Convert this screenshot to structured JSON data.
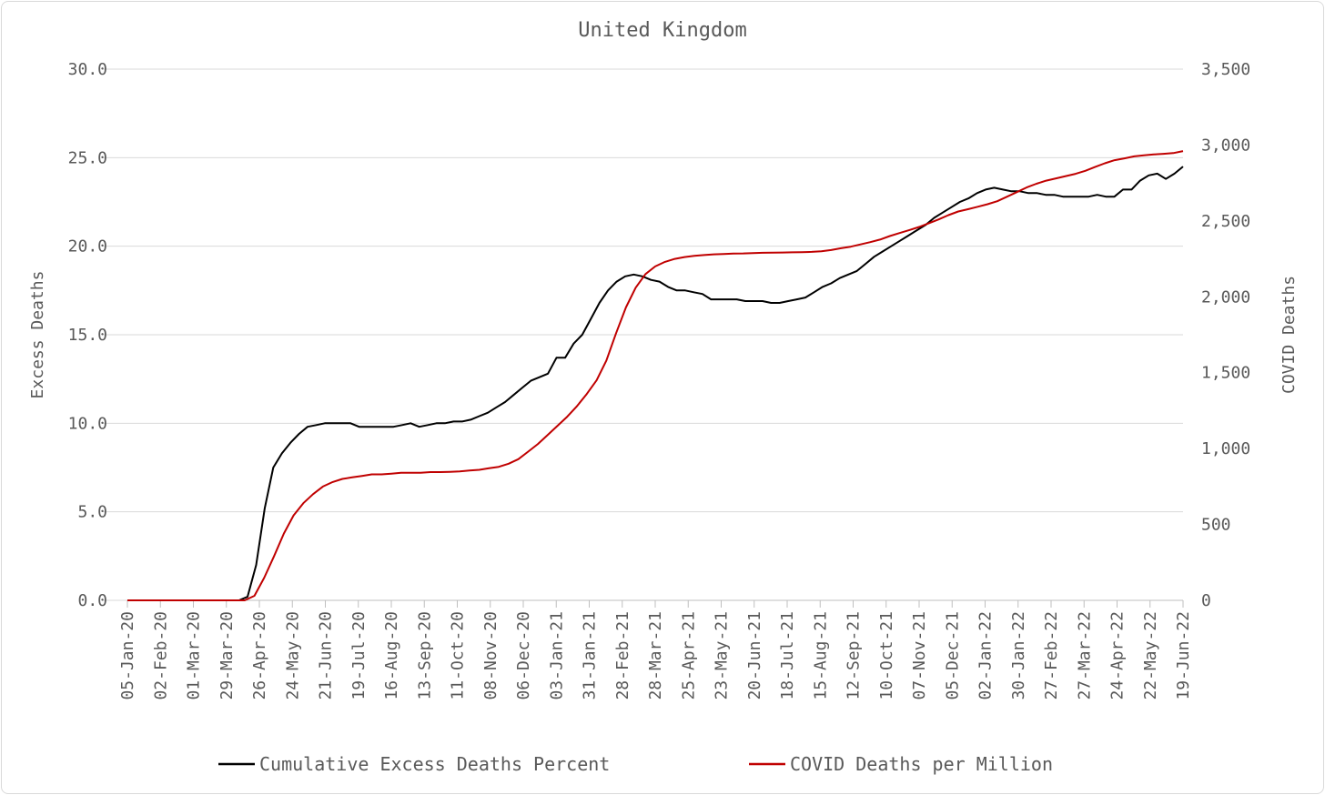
{
  "chart_data": {
    "type": "line",
    "title": "United Kingdom",
    "ylabel_left": "Excess Deaths",
    "ylabel_right": "COVID Deaths",
    "ylim_left": [
      0,
      30
    ],
    "ylim_right": [
      0,
      3500
    ],
    "yticks_left": [
      "0.0",
      "5.0",
      "10.0",
      "15.0",
      "20.0",
      "25.0",
      "30.0"
    ],
    "yticks_right": [
      "0",
      "500",
      "1,000",
      "1,500",
      "2,000",
      "2,500",
      "3,000",
      "3,500"
    ],
    "grid": true,
    "legend_position": "bottom",
    "x_tick_labels": [
      "05-Jan-20",
      "02-Feb-20",
      "01-Mar-20",
      "29-Mar-20",
      "26-Apr-20",
      "24-May-20",
      "21-Jun-20",
      "19-Jul-20",
      "16-Aug-20",
      "13-Sep-20",
      "11-Oct-20",
      "08-Nov-20",
      "06-Dec-20",
      "03-Jan-21",
      "31-Jan-21",
      "28-Feb-21",
      "28-Mar-21",
      "25-Apr-21",
      "23-May-21",
      "20-Jun-21",
      "18-Jul-21",
      "15-Aug-21",
      "12-Sep-21",
      "10-Oct-21",
      "07-Nov-21",
      "05-Dec-21",
      "02-Jan-22",
      "30-Jan-22",
      "27-Feb-22",
      "27-Mar-22",
      "24-Apr-22",
      "22-May-22",
      "19-Jun-22"
    ],
    "series": [
      {
        "name": "Cumulative Excess Deaths Percent",
        "axis": "left",
        "color": "#000000",
        "values": [
          0,
          0,
          0,
          0,
          0,
          0,
          0,
          0,
          0,
          0,
          0,
          0,
          0,
          0,
          0.2,
          2.0,
          5.2,
          7.5,
          8.3,
          8.9,
          9.4,
          9.8,
          9.9,
          10.0,
          10.0,
          10.0,
          10.0,
          9.8,
          9.8,
          9.8,
          9.8,
          9.8,
          9.9,
          10.0,
          9.8,
          9.9,
          10.0,
          10.0,
          10.1,
          10.1,
          10.2,
          10.4,
          10.6,
          10.9,
          11.2,
          11.6,
          12.0,
          12.4,
          12.6,
          12.8,
          13.7,
          13.7,
          14.5,
          15.0,
          15.9,
          16.8,
          17.5,
          18.0,
          18.3,
          18.4,
          18.3,
          18.1,
          18.0,
          17.7,
          17.5,
          17.5,
          17.4,
          17.3,
          17.0,
          17.0,
          17.0,
          17.0,
          16.9,
          16.9,
          16.9,
          16.8,
          16.8,
          16.9,
          17.0,
          17.1,
          17.4,
          17.7,
          17.9,
          18.2,
          18.4,
          18.6,
          19.0,
          19.4,
          19.7,
          20.0,
          20.3,
          20.6,
          20.9,
          21.2,
          21.6,
          21.9,
          22.2,
          22.5,
          22.7,
          23.0,
          23.2,
          23.3,
          23.2,
          23.1,
          23.1,
          23.0,
          23.0,
          22.9,
          22.9,
          22.8,
          22.8,
          22.8,
          22.8,
          22.9,
          22.8,
          22.8,
          23.2,
          23.2,
          23.7,
          24.0,
          24.1,
          23.8,
          24.1,
          24.5
        ]
      },
      {
        "name": "COVID Deaths per Million",
        "axis": "right",
        "color": "#c00000",
        "values": [
          0,
          0,
          0,
          0,
          0,
          0,
          0,
          0,
          0,
          0,
          0,
          0,
          0,
          30,
          150,
          290,
          440,
          560,
          640,
          700,
          750,
          780,
          800,
          810,
          820,
          830,
          830,
          835,
          840,
          840,
          840,
          845,
          845,
          847,
          850,
          855,
          860,
          870,
          880,
          900,
          930,
          980,
          1030,
          1090,
          1150,
          1210,
          1280,
          1360,
          1450,
          1580,
          1760,
          1930,
          2060,
          2150,
          2200,
          2230,
          2250,
          2262,
          2270,
          2275,
          2280,
          2282,
          2285,
          2286,
          2288,
          2290,
          2291,
          2292,
          2293,
          2294,
          2296,
          2300,
          2308,
          2320,
          2330,
          2345,
          2360,
          2377,
          2400,
          2420,
          2440,
          2460,
          2485,
          2510,
          2538,
          2562,
          2577,
          2593,
          2610,
          2630,
          2660,
          2690,
          2720,
          2745,
          2765,
          2780,
          2795,
          2810,
          2830,
          2855,
          2880,
          2900,
          2912,
          2925,
          2932,
          2938,
          2942,
          2947,
          2960
        ]
      }
    ]
  }
}
